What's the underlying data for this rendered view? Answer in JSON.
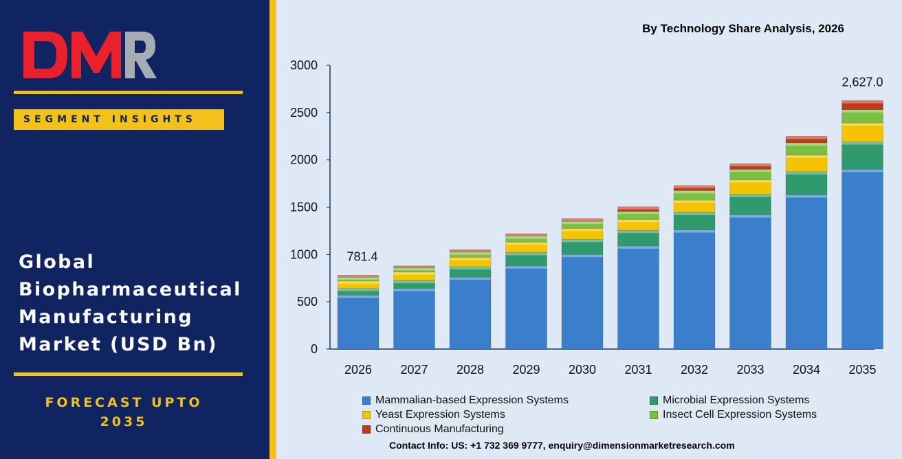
{
  "brand": {
    "logo_text": "DMR"
  },
  "sidebar": {
    "badge": "SEGMENT INSIGHTS",
    "title_lines": [
      "Global",
      "Biopharmaceutical",
      "Manufacturing",
      "Market (USD Bn)"
    ],
    "forecast_line1": "FORECAST UPTO",
    "forecast_line2": "2035"
  },
  "footer": {
    "contact": "Contact Info: US: +1 732 369 9777, enquiry@dimensionmarketresearch.com"
  },
  "colors": {
    "panel": "#0f2460",
    "accent": "#f2c21b",
    "logo_red": "#e8212b",
    "logo_grey": "#a6acb3",
    "chart_bg": "#dfe9f5"
  },
  "chart_data": {
    "type": "bar",
    "stacked": true,
    "title": "By Technology Share Analysis, 2026",
    "categories": [
      "2026",
      "2027",
      "2028",
      "2029",
      "2030",
      "2031",
      "2032",
      "2033",
      "2034",
      "2035"
    ],
    "ylim": [
      0,
      3000
    ],
    "yticks": [
      0,
      500,
      1000,
      1500,
      2000,
      2500,
      3000
    ],
    "grid": false,
    "legend_position": "bottom",
    "series": [
      {
        "name": "Mammalian-based Expression Systems",
        "color": "#3a7fcc",
        "values": [
          570,
          640,
          760,
          880,
          1000,
          1090,
          1260,
          1420,
          1630,
          1900
        ]
      },
      {
        "name": "Microbial Expression Systems",
        "color": "#2f9a6c",
        "values": [
          70,
          85,
          110,
          140,
          160,
          165,
          185,
          215,
          245,
          290
        ]
      },
      {
        "name": "Yeast Expression Systems",
        "color": "#f4c400",
        "values": [
          80,
          90,
          100,
          110,
          115,
          115,
          130,
          155,
          175,
          200
        ]
      },
      {
        "name": "Insect Cell Expression Systems",
        "color": "#7bc043",
        "values": [
          40,
          45,
          55,
          65,
          75,
          85,
          100,
          110,
          130,
          140
        ]
      },
      {
        "name": "Continuous Manufacturing",
        "color": "#c0391b",
        "values": [
          21.4,
          20,
          25,
          25,
          30,
          50,
          55,
          60,
          70,
          97
        ]
      }
    ],
    "data_labels": [
      {
        "category": "2026",
        "text": "781.4"
      },
      {
        "category": "2035",
        "text": "2,627.0"
      }
    ]
  }
}
